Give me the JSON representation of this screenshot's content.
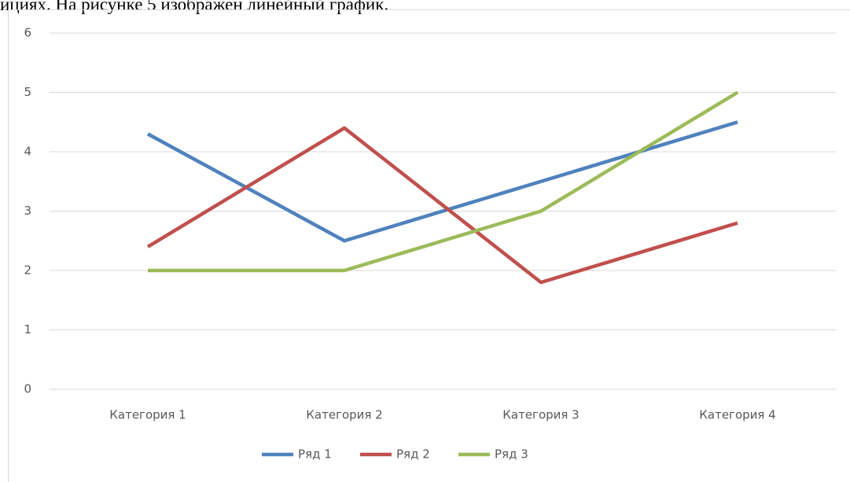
{
  "caption": "ициях. На рисунке 5 изображен линейный график.",
  "chart_data": {
    "type": "line",
    "categories": [
      "Категория 1",
      "Категория 2",
      "Категория 3",
      "Категория 4"
    ],
    "series": [
      {
        "name": "Ряд 1",
        "color": "#4f81bd",
        "values": [
          4.3,
          2.5,
          3.5,
          4.5
        ]
      },
      {
        "name": "Ряд 2",
        "color": "#c0504d",
        "values": [
          2.4,
          4.4,
          1.8,
          2.8
        ]
      },
      {
        "name": "Ряд 3",
        "color": "#9bbb59",
        "values": [
          2,
          2,
          3,
          5
        ]
      }
    ],
    "ylim": [
      0,
      6
    ],
    "yticks": [
      0,
      1,
      2,
      3,
      4,
      5,
      6
    ],
    "grid": true,
    "legend": "bottom"
  }
}
